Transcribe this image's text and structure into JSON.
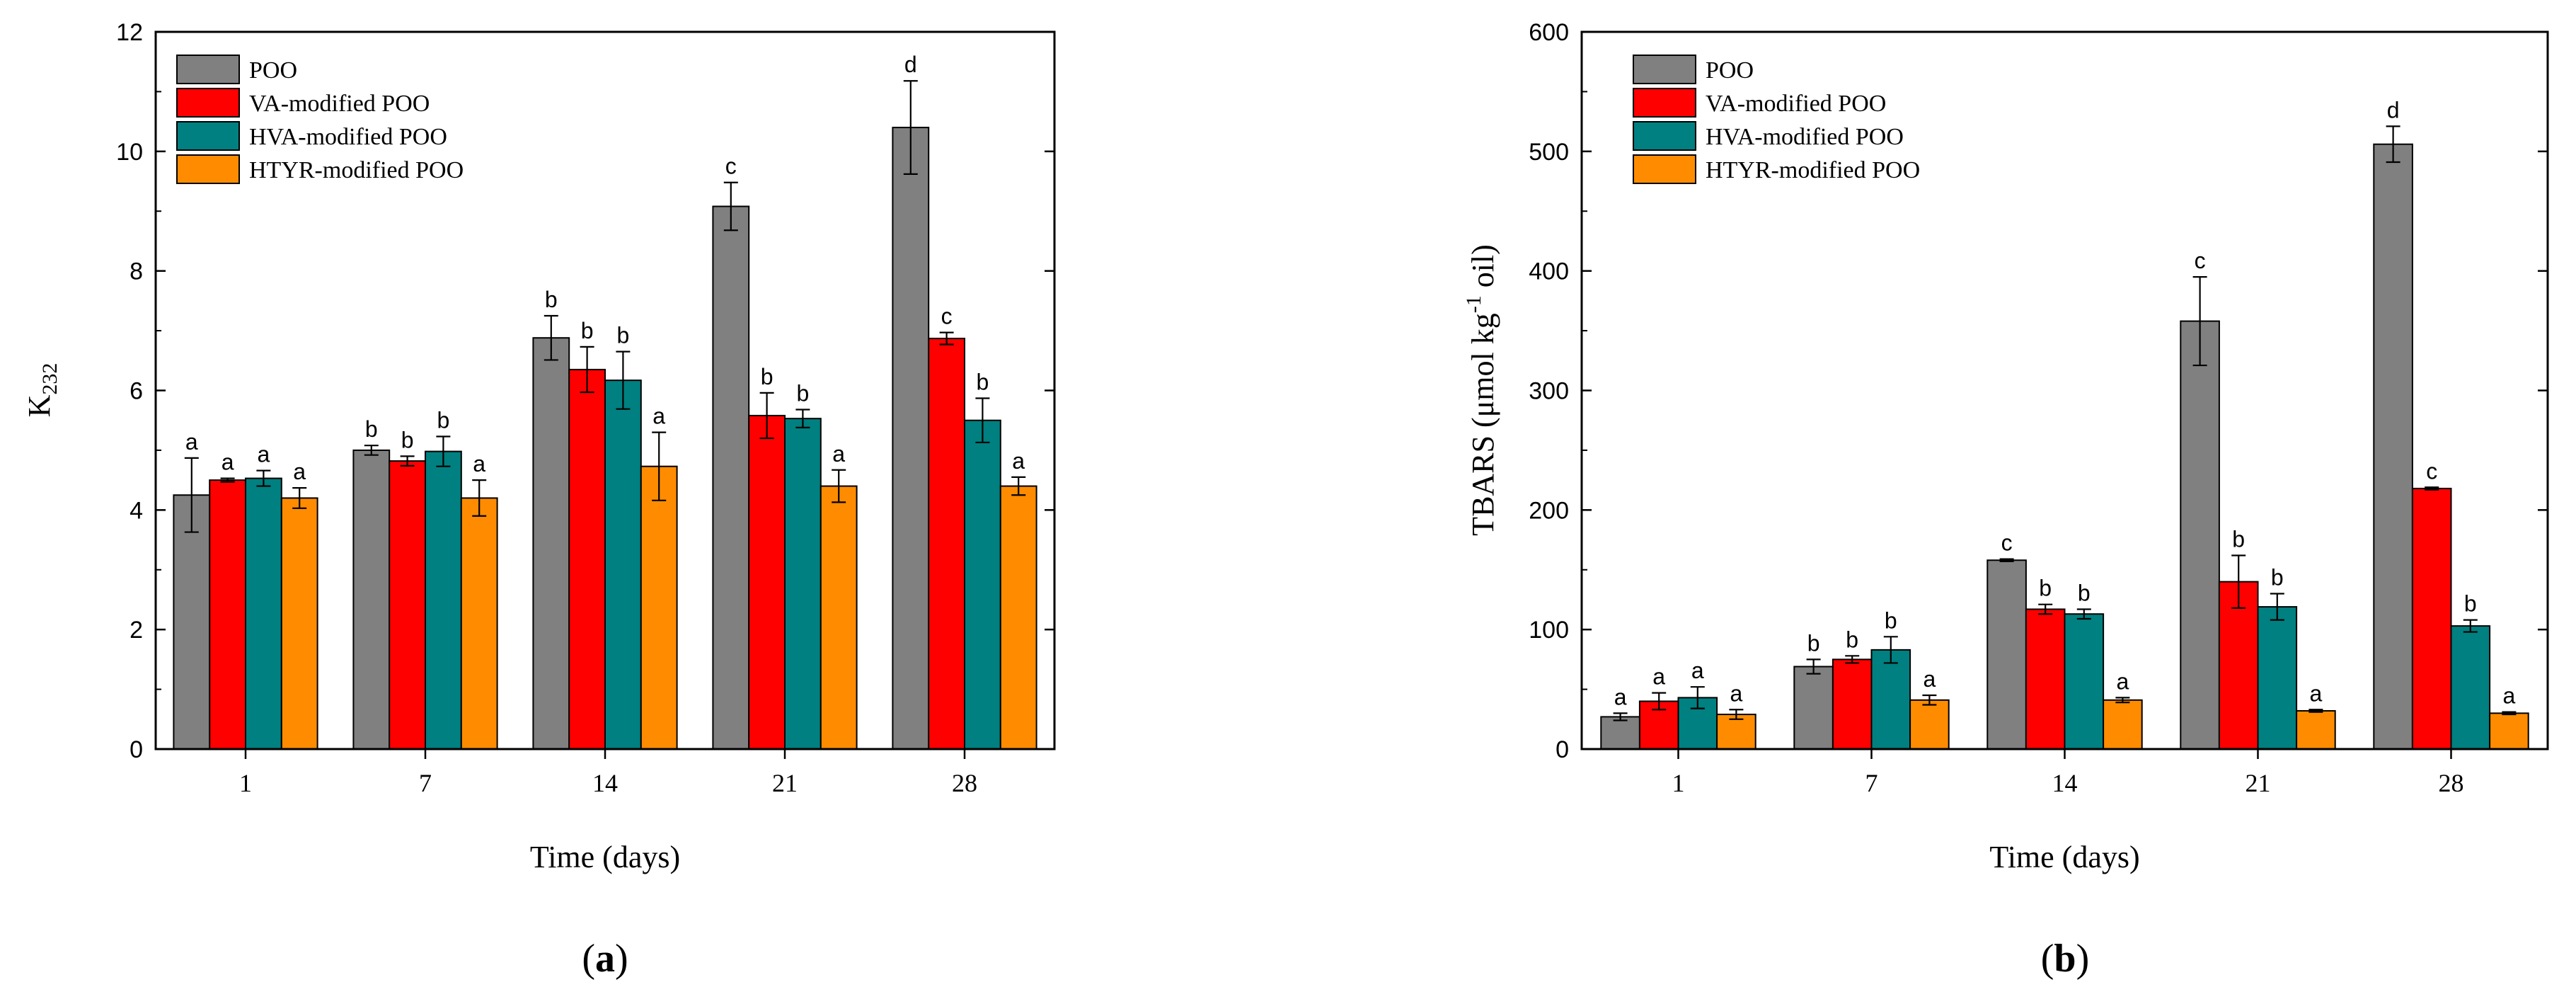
{
  "chart_data": [
    {
      "type": "bar",
      "panel_label": "a",
      "title": "",
      "xlabel": "Time (days)",
      "ylabel_main": "K",
      "ylabel_sub": "232",
      "categories": [
        "1",
        "7",
        "14",
        "21",
        "28"
      ],
      "ylim": [
        0,
        12
      ],
      "yticks": [
        "0",
        "2",
        "4",
        "6",
        "8",
        "10",
        "12"
      ],
      "legend_position": "top-left",
      "grid": false,
      "series": [
        {
          "name": "POO",
          "color": "#808080",
          "values": [
            4.25,
            5.0,
            6.88,
            9.08,
            10.4
          ],
          "errors": [
            0.62,
            0.08,
            0.37,
            0.4,
            0.78
          ],
          "letters": [
            "a",
            "b",
            "b",
            "c",
            "d"
          ]
        },
        {
          "name": "VA-modified POO",
          "color": "#ff0000",
          "values": [
            4.5,
            4.82,
            6.35,
            5.58,
            6.87
          ],
          "errors": [
            0.03,
            0.08,
            0.38,
            0.38,
            0.1
          ],
          "letters": [
            "a",
            "b",
            "b",
            "b",
            "c"
          ]
        },
        {
          "name": "HVA-modified POO",
          "color": "#008080",
          "values": [
            4.53,
            4.98,
            6.17,
            5.53,
            5.5
          ],
          "errors": [
            0.13,
            0.25,
            0.48,
            0.15,
            0.37
          ],
          "letters": [
            "a",
            "b",
            "b",
            "b",
            "b"
          ]
        },
        {
          "name": "HTYR-modified POO",
          "color": "#ff8c00",
          "values": [
            4.2,
            4.2,
            4.73,
            4.4,
            4.4
          ],
          "errors": [
            0.17,
            0.3,
            0.57,
            0.27,
            0.15
          ],
          "letters": [
            "a",
            "a",
            "a",
            "a",
            "a"
          ]
        }
      ]
    },
    {
      "type": "bar",
      "panel_label": "b",
      "title": "",
      "xlabel": "Time (days)",
      "ylabel_main": "TBARS (μmol kg",
      "ylabel_sup": "-1",
      "ylabel_tail": " oil)",
      "categories": [
        "1",
        "7",
        "14",
        "21",
        "28"
      ],
      "ylim": [
        0,
        600
      ],
      "yticks": [
        "0",
        "100",
        "200",
        "300",
        "400",
        "500",
        "600"
      ],
      "legend_position": "top-left",
      "grid": false,
      "series": [
        {
          "name": "POO",
          "color": "#808080",
          "values": [
            27,
            69,
            158,
            358,
            506
          ],
          "errors": [
            3,
            6,
            1,
            37,
            15
          ],
          "letters": [
            "a",
            "b",
            "c",
            "c",
            "d"
          ]
        },
        {
          "name": "VA-modified POO",
          "color": "#ff0000",
          "values": [
            40,
            75,
            117,
            140,
            218
          ],
          "errors": [
            7,
            3,
            4,
            22,
            1
          ],
          "letters": [
            "a",
            "b",
            "b",
            "b",
            "c"
          ]
        },
        {
          "name": "HVA-modified POO",
          "color": "#008080",
          "values": [
            43,
            83,
            113,
            119,
            103
          ],
          "errors": [
            9,
            11,
            4,
            11,
            5
          ],
          "letters": [
            "a",
            "b",
            "b",
            "b",
            "b"
          ]
        },
        {
          "name": "HTYR-modified POO",
          "color": "#ff8c00",
          "values": [
            29,
            41,
            41,
            32,
            30
          ],
          "errors": [
            4,
            4,
            2,
            1,
            1
          ],
          "letters": [
            "a",
            "a",
            "a",
            "a",
            "a"
          ]
        }
      ]
    }
  ]
}
